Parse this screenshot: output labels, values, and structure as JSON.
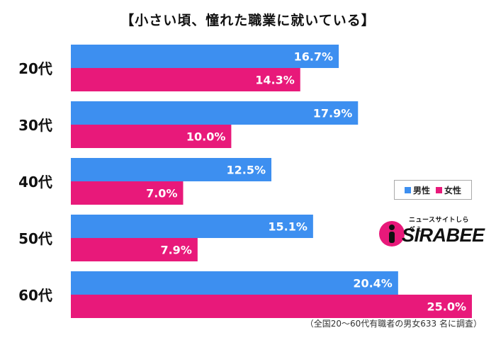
{
  "chart_data": {
    "type": "bar",
    "orientation": "horizontal",
    "title": "【小さい頃、憧れた職業に就いている】",
    "categories": [
      "20代",
      "30代",
      "40代",
      "50代",
      "60代"
    ],
    "series": [
      {
        "name": "男性",
        "color": "#3d8ff0",
        "values": [
          16.7,
          17.9,
          12.5,
          15.1,
          20.4
        ],
        "labels": [
          "16.7%",
          "17.9%",
          "12.5%",
          "15.1%",
          "20.4%"
        ]
      },
      {
        "name": "女性",
        "color": "#e8197a",
        "values": [
          14.3,
          10.0,
          7.0,
          7.9,
          25.0
        ],
        "labels": [
          "14.3%",
          "10.0%",
          "7.0%",
          "7.9%",
          "25.0%"
        ]
      }
    ],
    "xlim": [
      0,
      25
    ],
    "grid": false,
    "legend": "right"
  },
  "logo": {
    "tagline": "ニュースサイトしらべぇ",
    "wordmark": "SIRABEE"
  },
  "footnote": "（全国20～60代有職者の男女633 名に調査）"
}
